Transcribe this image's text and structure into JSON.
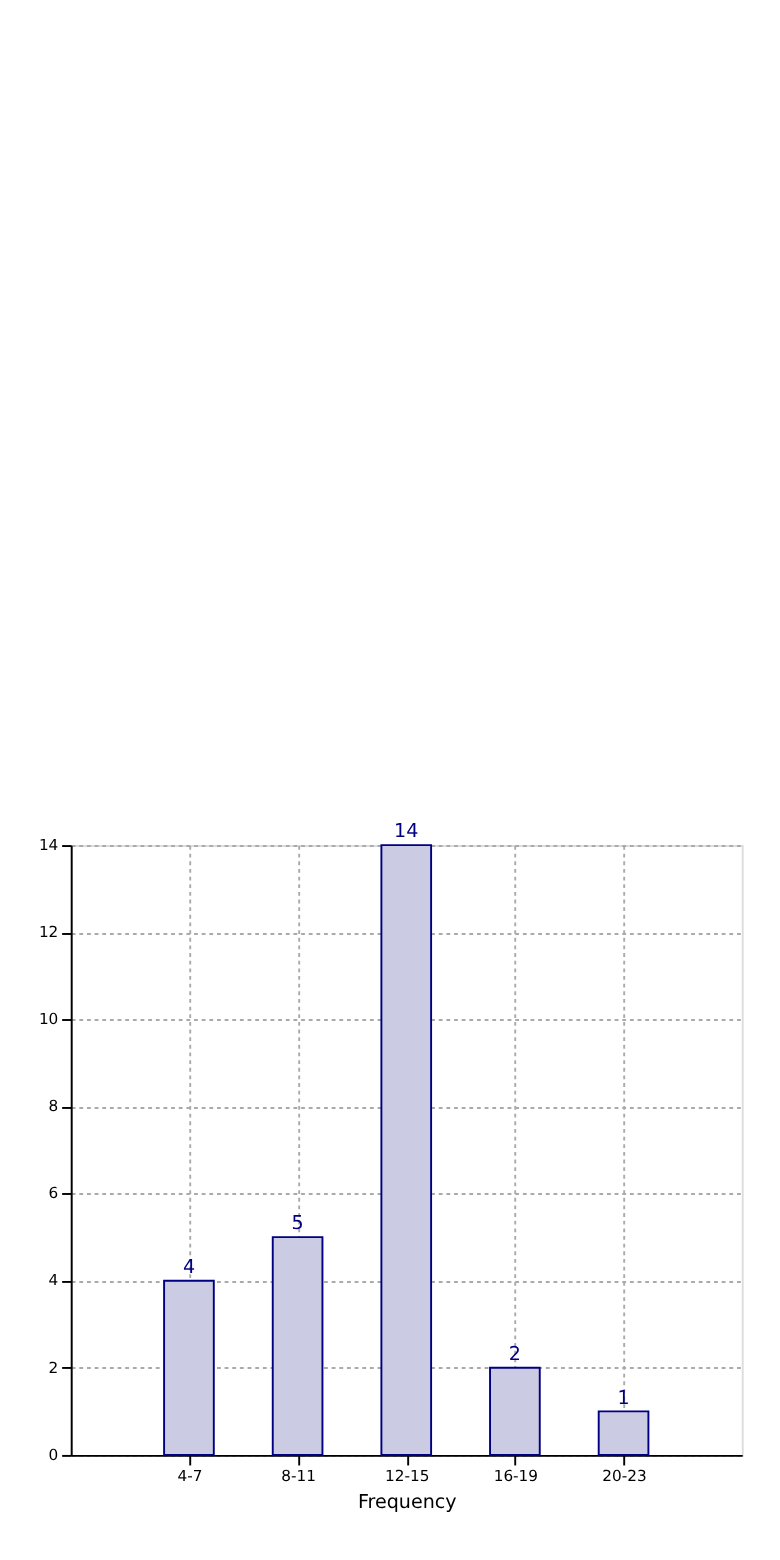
{
  "chart_data": {
    "type": "bar",
    "xlabel": "Frequency",
    "categories": [
      "4-7",
      "8-11",
      "12-15",
      "16-19",
      "20-23"
    ],
    "values": [
      4,
      5,
      14,
      2,
      1
    ],
    "color": "#cbcbe3",
    "ylim": [
      0,
      14
    ],
    "yticks": [
      0,
      2,
      4,
      6,
      8,
      10,
      12,
      14
    ],
    "grid": true,
    "data_labels": true
  }
}
